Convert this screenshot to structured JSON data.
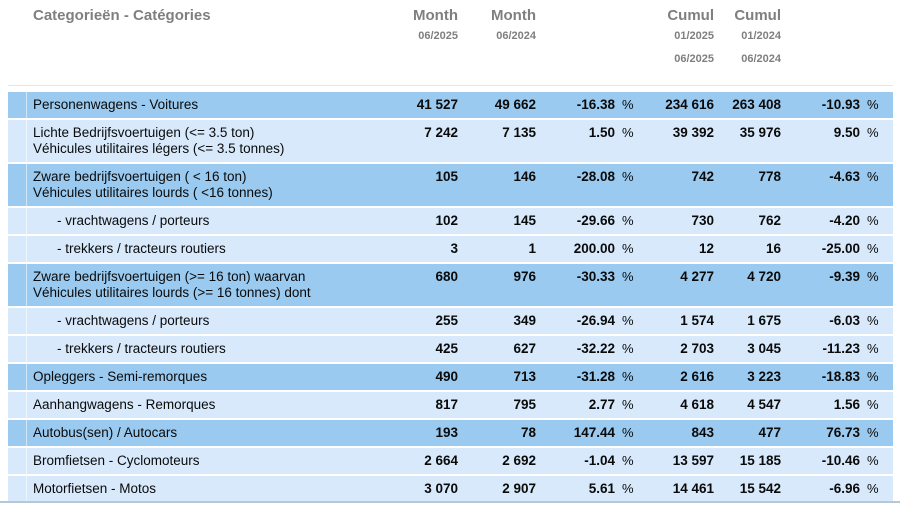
{
  "colors": {
    "row_dark": "#9ACAF0",
    "row_light": "#D7E9FB",
    "header_text": "#7F7F7F",
    "body_text": "#0A0A0A",
    "bottom_rule": "#B5C8D6",
    "top_hairline": "#DCE8F4"
  },
  "header": {
    "category_label": "Categorieën - Catégories",
    "month1_title": "Month",
    "month1_period": "06/2025",
    "month2_title": "Month",
    "month2_period": "06/2024",
    "cumul1_title": "Cumul",
    "cumul1_from": "01/2025",
    "cumul1_to": "06/2025",
    "cumul2_title": "Cumul",
    "cumul2_from": "01/2024",
    "cumul2_to": "06/2024"
  },
  "percent_symbol": "%",
  "rows": [
    {
      "shade": "dark",
      "indent": false,
      "label_lines": [
        "Personenwagens - Voitures"
      ],
      "month_2025": "41 527",
      "month_2024": "49 662",
      "month_pct": "-16.38",
      "cumul_2025": "234 616",
      "cumul_2024": "263 408",
      "cumul_pct": "-10.93"
    },
    {
      "shade": "light",
      "indent": false,
      "label_lines": [
        "Lichte Bedrijfsvoertuigen (<= 3.5 ton)",
        "Véhicules utilitaires légers (<= 3.5 tonnes)"
      ],
      "month_2025": "7 242",
      "month_2024": "7 135",
      "month_pct": "1.50",
      "cumul_2025": "39 392",
      "cumul_2024": "35 976",
      "cumul_pct": "9.50"
    },
    {
      "shade": "dark",
      "indent": false,
      "label_lines": [
        "Zware bedrijfsvoertuigen ( < 16 ton)",
        "Véhicules utilitaires lourds ( <16 tonnes)"
      ],
      "month_2025": "105",
      "month_2024": "146",
      "month_pct": "-28.08",
      "cumul_2025": "742",
      "cumul_2024": "778",
      "cumul_pct": "-4.63"
    },
    {
      "shade": "light",
      "indent": true,
      "label_lines": [
        "- vrachtwagens / porteurs"
      ],
      "month_2025": "102",
      "month_2024": "145",
      "month_pct": "-29.66",
      "cumul_2025": "730",
      "cumul_2024": "762",
      "cumul_pct": "-4.20"
    },
    {
      "shade": "light",
      "indent": true,
      "label_lines": [
        "- trekkers / tracteurs routiers"
      ],
      "month_2025": "3",
      "month_2024": "1",
      "month_pct": "200.00",
      "cumul_2025": "12",
      "cumul_2024": "16",
      "cumul_pct": "-25.00"
    },
    {
      "shade": "dark",
      "indent": false,
      "label_lines": [
        "Zware bedrijfsvoertuigen (>= 16 ton) waarvan",
        "Véhicules utilitaires lourds (>= 16 tonnes) dont"
      ],
      "month_2025": "680",
      "month_2024": "976",
      "month_pct": "-30.33",
      "cumul_2025": "4 277",
      "cumul_2024": "4 720",
      "cumul_pct": "-9.39"
    },
    {
      "shade": "light",
      "indent": true,
      "label_lines": [
        "- vrachtwagens / porteurs"
      ],
      "month_2025": "255",
      "month_2024": "349",
      "month_pct": "-26.94",
      "cumul_2025": "1 574",
      "cumul_2024": "1 675",
      "cumul_pct": "-6.03"
    },
    {
      "shade": "light",
      "indent": true,
      "label_lines": [
        "- trekkers / tracteurs routiers"
      ],
      "month_2025": "425",
      "month_2024": "627",
      "month_pct": "-32.22",
      "cumul_2025": "2 703",
      "cumul_2024": "3 045",
      "cumul_pct": "-11.23"
    },
    {
      "shade": "dark",
      "indent": false,
      "label_lines": [
        "Opleggers - Semi-remorques"
      ],
      "month_2025": "490",
      "month_2024": "713",
      "month_pct": "-31.28",
      "cumul_2025": "2 616",
      "cumul_2024": "3 223",
      "cumul_pct": "-18.83"
    },
    {
      "shade": "light",
      "indent": false,
      "label_lines": [
        "Aanhangwagens - Remorques"
      ],
      "month_2025": "817",
      "month_2024": "795",
      "month_pct": "2.77",
      "cumul_2025": "4 618",
      "cumul_2024": "4 547",
      "cumul_pct": "1.56"
    },
    {
      "shade": "dark",
      "indent": false,
      "label_lines": [
        "Autobus(sen) / Autocars"
      ],
      "month_2025": "193",
      "month_2024": "78",
      "month_pct": "147.44",
      "cumul_2025": "843",
      "cumul_2024": "477",
      "cumul_pct": "76.73"
    },
    {
      "shade": "light",
      "indent": false,
      "label_lines": [
        "Bromfietsen - Cyclomoteurs"
      ],
      "month_2025": "2 664",
      "month_2024": "2 692",
      "month_pct": "-1.04",
      "cumul_2025": "13 597",
      "cumul_2024": "15 185",
      "cumul_pct": "-10.46"
    },
    {
      "shade": "light",
      "indent": false,
      "label_lines": [
        "Motorfietsen - Motos"
      ],
      "month_2025": "3 070",
      "month_2024": "2 907",
      "month_pct": "5.61",
      "cumul_2025": "14 461",
      "cumul_2024": "15 542",
      "cumul_pct": "-6.96"
    }
  ]
}
